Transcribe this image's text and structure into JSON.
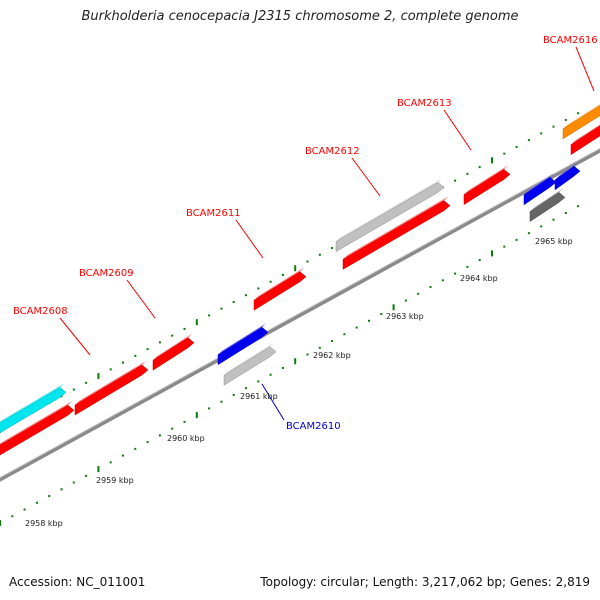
{
  "title": "Burkholderia cenocepacia J2315 chromosome 2, complete genome",
  "footer": {
    "accession": "Accession: NC_011001",
    "topology": "Topology: circular; Length: 3,217,062 bp; Genes: 2,819"
  },
  "colors": {
    "red_gene": "#ff0000",
    "blue_gene": "#0000ee",
    "gray_gene": "#c0c0c0",
    "darkgray_gene": "#666666",
    "cyan_gene": "#00e5ee",
    "orange_gene": "#ff8c00",
    "tick": "#0a7a0a",
    "backbone": "#888888"
  },
  "kbp_labels": [
    "2958 kbp",
    "2959 kbp",
    "2960 kbp",
    "2961 kbp",
    "2962 kbp",
    "2963 kbp",
    "2964 kbp",
    "2965 kbp"
  ],
  "gene_labels": [
    {
      "name": "BCAM2608",
      "color": "#ff0000"
    },
    {
      "name": "BCAM2609",
      "color": "#ff0000"
    },
    {
      "name": "BCAM2610",
      "color": "#0000cc"
    },
    {
      "name": "BCAM2611",
      "color": "#ff0000"
    },
    {
      "name": "BCAM2612",
      "color": "#ff0000"
    },
    {
      "name": "BCAM2613",
      "color": "#ff0000"
    },
    {
      "name": "BCAM2616",
      "color": "#ff0000"
    }
  ]
}
